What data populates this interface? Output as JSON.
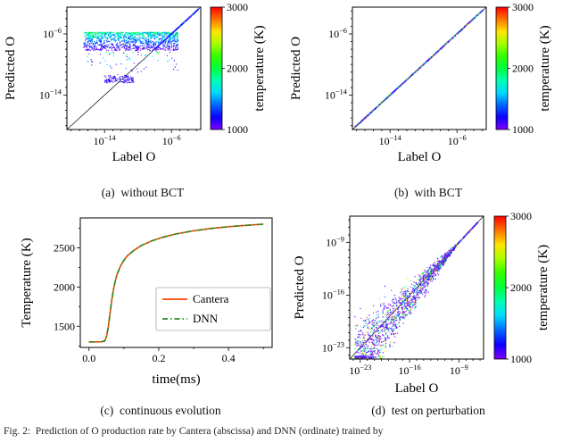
{
  "page": {
    "background": "#ffffff"
  },
  "captions": {
    "a": "(a)  without BCT",
    "b": "(b)  with BCT",
    "c": "(c)  continuous evolution",
    "d": "(d)  test on perturbation",
    "figure": "Fig. 2:  Prediction of O production rate by Cantera (abscissa) and DNN (ordinate) trained by"
  },
  "colors": {
    "cantera_line": "#ff4500",
    "dnn_line": "#228b22",
    "reference_line": "#222222",
    "axis": "#000000"
  },
  "chart_data": [
    {
      "id": "a",
      "container": "plot-a",
      "type": "scatter",
      "variant": "parity",
      "title": "without BCT",
      "xlabel": "Label O",
      "ylabel": "Predicted O",
      "x_log_range": [
        -18.5,
        -2.5
      ],
      "y_log_range": [
        -18.5,
        -2.5
      ],
      "x_tick_exponents": [
        -14,
        -6
      ],
      "y_tick_exponents": [
        -6,
        -14
      ],
      "diagonal_reference_line": true,
      "colorbar": {
        "label": "temperature (K)",
        "min": 1000,
        "max": 3000,
        "ticks": [
          1000,
          2000,
          3000
        ],
        "colormap": "rainbow"
      },
      "point_cloud": {
        "description": "dense horizontal band of mispredicted points near 1e-6 to 1e-8 spanning labels 1e-16..1e-5, sparse tail down to 1e-12, small low cluster, accurate diagonal at high values",
        "seed": 42,
        "n_cloud": 1300,
        "cloud_x_log": [
          -16.5,
          -5.2
        ],
        "band_y_log": [
          -5.8,
          -8.2
        ],
        "tail_fraction": 0.1,
        "tail_depth_log": 3.5,
        "cluster": {
          "x_log": [
            -14,
            -10.5
          ],
          "y_log": [
            -12.4,
            -11.4
          ],
          "n": 120
        },
        "diagonal_points": {
          "x_log": [
            -8,
            -2.8
          ],
          "n": 350
        }
      }
    },
    {
      "id": "b",
      "container": "plot-b",
      "type": "scatter",
      "variant": "parity",
      "title": "with BCT",
      "xlabel": "Label O",
      "ylabel": "Predicted O",
      "x_log_range": [
        -18.5,
        -2.5
      ],
      "y_log_range": [
        -18.5,
        -2.5
      ],
      "x_tick_exponents": [
        -14,
        -6
      ],
      "y_tick_exponents": [
        -6,
        -14
      ],
      "diagonal_reference_line": true,
      "colorbar": {
        "label": "temperature (K)",
        "min": 1000,
        "max": 3000,
        "ticks": [
          1000,
          2000,
          3000
        ],
        "colormap": "rainbow"
      },
      "point_cloud": {
        "description": "all points tightly on the y=x diagonal across the full range",
        "seed": 7,
        "n": 1500,
        "diag_x_log": [
          -18.2,
          -2.8
        ],
        "jitter_log": 0.06,
        "temp_bias": 3
      }
    },
    {
      "id": "c",
      "container": "plot-c",
      "type": "line",
      "title": "continuous evolution",
      "xlabel": "time(ms)",
      "ylabel": "Temperature (K)",
      "xlim": [
        -0.025,
        0.525
      ],
      "ylim": [
        1230,
        2880
      ],
      "x_ticks": [
        0,
        0.2,
        0.4
      ],
      "x_minor_ticks": [
        0.1,
        0.3,
        0.5
      ],
      "y_ticks": [
        1500,
        2000,
        2500
      ],
      "y_minor_ticks": [
        1250,
        1750,
        2250,
        2750
      ],
      "series": [
        {
          "name": "Cantera",
          "color": "#ff4500",
          "style": "solid",
          "x": [
            0,
            0.02,
            0.035,
            0.045,
            0.05,
            0.055,
            0.06,
            0.065,
            0.07,
            0.075,
            0.08,
            0.09,
            0.1,
            0.11,
            0.13,
            0.15,
            0.18,
            0.21,
            0.25,
            0.3,
            0.35,
            0.4,
            0.45,
            0.5
          ],
          "y": [
            1300,
            1300,
            1302,
            1312,
            1365,
            1485,
            1655,
            1825,
            1960,
            2070,
            2155,
            2265,
            2340,
            2398,
            2472,
            2528,
            2588,
            2632,
            2676,
            2716,
            2746,
            2768,
            2786,
            2800
          ]
        },
        {
          "name": "DNN",
          "color": "#228b22",
          "style": "dashdot",
          "x": [
            0,
            0.02,
            0.035,
            0.045,
            0.05,
            0.055,
            0.06,
            0.065,
            0.07,
            0.075,
            0.08,
            0.09,
            0.1,
            0.11,
            0.13,
            0.15,
            0.18,
            0.21,
            0.25,
            0.3,
            0.35,
            0.4,
            0.45,
            0.5
          ],
          "y": [
            1300,
            1300,
            1302,
            1312,
            1365,
            1485,
            1655,
            1825,
            1960,
            2070,
            2155,
            2265,
            2340,
            2398,
            2472,
            2528,
            2588,
            2632,
            2676,
            2716,
            2746,
            2768,
            2786,
            2800
          ]
        }
      ],
      "legend": {
        "entries": [
          "Cantera",
          "DNN"
        ],
        "position": "center-right"
      }
    },
    {
      "id": "d",
      "container": "plot-d",
      "type": "scatter",
      "variant": "parity",
      "title": "test on perturbation",
      "xlabel": "Label O",
      "ylabel": "Predicted O",
      "x_log_range": [
        -24.5,
        -5.5
      ],
      "y_log_range": [
        -24.5,
        -5.5
      ],
      "x_tick_exponents": [
        -23,
        -16,
        -9
      ],
      "y_tick_exponents": [
        -9,
        -16,
        -23
      ],
      "diagonal_reference_line": true,
      "colorbar": {
        "label": "temperature (K)",
        "min": 1000,
        "max": 3000,
        "ticks": [
          1000,
          2000,
          3000
        ],
        "colormap": "rainbow"
      },
      "point_cloud": {
        "description": "funnel: tight on diagonal at high values, widening scatter below ~1e-9 down to 1e-23, mostly low temperature (violet)",
        "seed": 99,
        "n": 1900,
        "x_log": [
          -23.8,
          -6.3
        ],
        "spread_start": -9,
        "spread_rate": 0.27,
        "temp_bias": 4
      }
    }
  ]
}
